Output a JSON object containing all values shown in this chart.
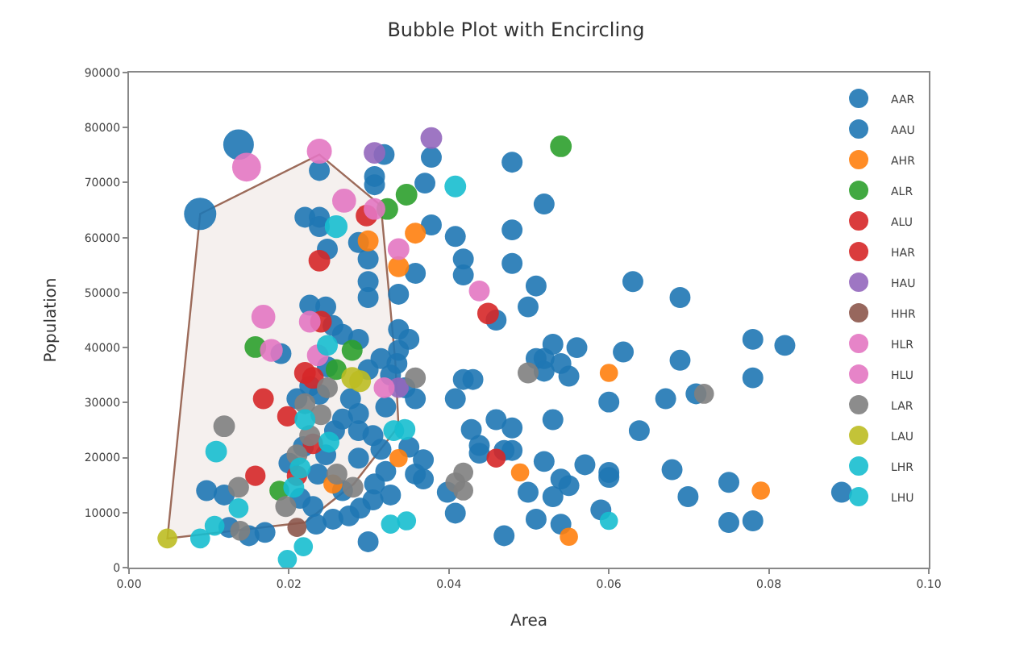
{
  "chart_data": {
    "type": "bubble",
    "title": "Bubble Plot with Encircling",
    "xlabel": "Area",
    "ylabel": "Population",
    "xlim": [
      0,
      0.1
    ],
    "ylim": [
      0,
      90000
    ],
    "xticks": [
      {
        "value": 0,
        "label": "0.00"
      },
      {
        "value": 0.02,
        "label": "0.02"
      },
      {
        "value": 0.04,
        "label": "0.04"
      },
      {
        "value": 0.06,
        "label": "0.06"
      },
      {
        "value": 0.08,
        "label": "0.08"
      },
      {
        "value": 0.1,
        "label": "0.10"
      }
    ],
    "yticks": [
      0,
      10000,
      20000,
      30000,
      40000,
      50000,
      60000,
      70000,
      80000,
      90000
    ],
    "grid": false,
    "legend": "top right",
    "marker": "circle",
    "series": [
      {
        "type": "area",
        "marker": "none",
        "color": "#9c6b5a",
        "x": [
          0.0048,
          0.0089,
          0.0238,
          0.0315,
          0.0333,
          0.0337,
          0.0281,
          0.022
        ],
        "values": [
          5300,
          64300,
          75100,
          65800,
          37400,
          25700,
          15200,
          8200
        ]
      },
      {
        "name": "AAR",
        "color": "#1f77b4",
        "x": [
          0.0479,
          0.0519,
          0.0479,
          0.0479,
          0.0509,
          0.063,
          0.0689,
          0.0499,
          0.0459,
          0.078,
          0.082,
          0.053,
          0.056,
          0.0618,
          0.0509,
          0.0519,
          0.054,
          0.0689,
          0.0519,
          0.055,
          0.078,
          0.06,
          0.0671,
          0.0709,
          0.0459,
          0.0479,
          0.053,
          0.0638,
          0.0469,
          0.0479,
          0.0519,
          0.057,
          0.06,
          0.06,
          0.0679,
          0.054,
          0.055,
          0.0499,
          0.053,
          0.0699,
          0.075,
          0.0891,
          0.059,
          0.0509,
          0.054,
          0.075,
          0.078,
          0.0469,
          0.0378,
          0.0319,
          0.0307,
          0.0307,
          0.037,
          0.0378,
          0.0408,
          0.0418,
          0.0418,
          0.0358,
          0.0337,
          0.0337,
          0.035,
          0.0418,
          0.043,
          0.0408,
          0.0358,
          0.0428,
          0.0438,
          0.0438,
          0.0368,
          0.0368,
          0.0408,
          0.0398,
          0.0299,
          0.0289,
          0.0358,
          0.0337,
          0.0335,
          0.0345,
          0.035,
          0.0238,
          0.022,
          0.0238,
          0.0238,
          0.0248,
          0.0287,
          0.0299,
          0.0299,
          0.0299,
          0.0226,
          0.0246,
          0.019,
          0.0267,
          0.0287,
          0.0277,
          0.0097,
          0.0119,
          0.0125,
          0.017,
          0.015,
          0.021,
          0.0257,
          0.02,
          0.0236,
          0.0267,
          0.0214,
          0.023,
          0.0287,
          0.0305,
          0.0321,
          0.0287,
          0.0321,
          0.0327,
          0.0305,
          0.0255,
          0.0234,
          0.0275,
          0.0307,
          0.0255,
          0.0226,
          0.0238,
          0.0287,
          0.0299,
          0.0315,
          0.0327,
          0.0248,
          0.0267,
          0.0218,
          0.0246,
          0.0315
        ],
        "values": [
          73700,
          66100,
          61400,
          55300,
          51200,
          52000,
          49100,
          47400,
          45000,
          41500,
          40400,
          40600,
          40000,
          39200,
          38000,
          38000,
          37100,
          37700,
          35700,
          34800,
          34500,
          30100,
          30700,
          31600,
          26900,
          25400,
          26900,
          24900,
          21300,
          21300,
          19300,
          18700,
          17300,
          16400,
          17800,
          16100,
          14900,
          13700,
          12900,
          12900,
          15500,
          13700,
          10500,
          8800,
          7900,
          8200,
          8500,
          5800,
          74600,
          75100,
          71100,
          69600,
          69900,
          62300,
          60200,
          56100,
          53200,
          53500,
          49700,
          43300,
          41500,
          34200,
          34200,
          30700,
          30700,
          25100,
          22200,
          20800,
          19600,
          16100,
          9900,
          13700,
          4700,
          10800,
          17000,
          39500,
          37100,
          32700,
          21900,
          72200,
          63700,
          63700,
          62000,
          57900,
          59100,
          56100,
          52000,
          49100,
          47700,
          47400,
          38900,
          42400,
          41500,
          30700,
          14000,
          13200,
          7300,
          6400,
          5800,
          30700,
          24900,
          19000,
          17000,
          14000,
          12600,
          11100,
          24900,
          24000,
          29200,
          19900,
          17500,
          13200,
          12300,
          8800,
          7900,
          9400,
          15200,
          44000,
          33000,
          31500,
          28000,
          36000,
          38000,
          35000,
          36500,
          27000,
          22000,
          20500,
          21500
        ],
        "sizes": [
          0.42,
          0.42,
          0.42,
          0.42,
          0.42,
          0.42,
          0.42,
          0.42,
          0.42,
          0.42,
          0.42,
          0.42,
          0.42,
          0.42,
          0.42,
          0.42,
          0.42,
          0.42,
          0.42,
          0.42,
          0.42,
          0.42,
          0.42,
          0.42,
          0.42,
          0.42,
          0.42,
          0.42,
          0.42,
          0.42,
          0.42,
          0.42,
          0.42,
          0.42,
          0.42,
          0.42,
          0.42,
          0.42,
          0.42,
          0.42,
          0.42,
          0.42,
          0.42,
          0.42,
          0.42,
          0.42,
          0.42,
          0.42,
          0.42,
          0.42,
          0.42,
          0.42,
          0.42,
          0.42,
          0.42,
          0.42,
          0.42,
          0.42,
          0.42,
          0.42,
          0.42,
          0.42,
          0.42,
          0.42,
          0.42,
          0.42,
          0.42,
          0.42,
          0.42,
          0.42,
          0.42,
          0.42,
          0.42,
          0.42,
          0.42,
          0.42,
          0.42,
          0.42,
          0.42,
          0.42,
          0.42,
          0.42,
          0.42,
          0.42,
          0.42,
          0.42,
          0.42,
          0.42,
          0.42,
          0.42,
          0.42,
          0.42,
          0.42,
          0.42,
          0.42,
          0.42,
          0.42,
          0.42,
          0.42,
          0.42,
          0.42,
          0.42,
          0.42,
          0.42,
          0.42,
          0.42,
          0.42,
          0.42,
          0.42,
          0.42,
          0.42,
          0.42,
          0.42,
          0.42,
          0.42,
          0.42,
          0.42,
          0.42,
          0.42,
          0.42,
          0.42,
          0.42,
          0.42,
          0.42,
          0.42,
          0.42,
          0.42,
          0.42,
          0.42
        ]
      },
      {
        "name": "AAU",
        "color": "#1f77b4",
        "x": [
          0.0089,
          0.0137
        ],
        "values": [
          64300,
          76900
        ],
        "sizes": [
          1,
          0.9
        ]
      },
      {
        "name": "AHR",
        "color": "#ff7f0e",
        "x": [
          0.06,
          0.0489,
          0.079,
          0.055,
          0.0358,
          0.0337,
          0.0299,
          0.0337,
          0.0255
        ],
        "values": [
          35400,
          17300,
          14000,
          5600,
          60800,
          19900,
          59400,
          54700,
          15200
        ],
        "sizes": [
          0.32,
          0.32,
          0.32,
          0.32,
          0.42,
          0.32,
          0.42,
          0.42,
          0.35
        ]
      },
      {
        "name": "ALR",
        "color": "#2ca02c",
        "x": [
          0.054,
          0.0347,
          0.0323,
          0.0158,
          0.0279,
          0.0259,
          0.0188
        ],
        "values": [
          76600,
          67800,
          65200,
          40100,
          39500,
          36000,
          14000
        ],
        "sizes": [
          0.45,
          0.45,
          0.45,
          0.45,
          0.42,
          0.42,
          0.38
        ]
      },
      {
        "name": "ALU",
        "color": "#d62728",
        "x": [
          0.0449,
          0.0459,
          0.0297,
          0.0238,
          0.024,
          0.022,
          0.023,
          0.0168
        ],
        "values": [
          46200,
          19900,
          64000,
          55800,
          44700,
          35400,
          34500,
          30700
        ],
        "sizes": [
          0.45,
          0.35,
          0.45,
          0.45,
          0.45,
          0.45,
          0.45,
          0.42
        ]
      },
      {
        "name": "HAR",
        "color": "#d62728",
        "x": [
          0.0198,
          0.0158,
          0.023,
          0.021
        ],
        "values": [
          27500,
          16700,
          22500,
          16700
        ],
        "sizes": [
          0.4,
          0.4,
          0.4,
          0.4
        ]
      },
      {
        "name": "HAU",
        "color": "#9467bd",
        "x": [
          0.0378,
          0.0307,
          0.0337
        ],
        "values": [
          78100,
          75400,
          32700
        ],
        "sizes": [
          0.45,
          0.45,
          0.4
        ]
      },
      {
        "name": "HHR",
        "color": "#8c564b",
        "x": [
          0.021
        ],
        "values": [
          7300
        ],
        "sizes": [
          0.35
        ]
      },
      {
        "name": "HLR",
        "color": "#e377c2",
        "x": [
          0.0438,
          0.0269,
          0.0307,
          0.0337,
          0.0226,
          0.0168,
          0.0178,
          0.0236,
          0.0319
        ],
        "values": [
          50300,
          66700,
          65200,
          57900,
          44700,
          45600,
          39500,
          38600,
          32700
        ],
        "sizes": [
          0.42,
          0.55,
          0.45,
          0.45,
          0.45,
          0.55,
          0.5,
          0.45,
          0.42
        ]
      },
      {
        "name": "HLU",
        "color": "#e377c2",
        "x": [
          0.0147,
          0.0238
        ],
        "values": [
          72800,
          75700
        ],
        "sizes": [
          0.8,
          0.6
        ]
      },
      {
        "name": "LAR",
        "color": "#7f7f7f",
        "x": [
          0.0499,
          0.0719,
          0.0358,
          0.0418,
          0.0408,
          0.0418,
          0.0248,
          0.0119,
          0.0137,
          0.0139,
          0.022,
          0.024,
          0.0226,
          0.021,
          0.026,
          0.0196,
          0.028
        ],
        "values": [
          35400,
          31600,
          34500,
          17300,
          15500,
          14000,
          32700,
          25700,
          14600,
          6700,
          29800,
          27800,
          24000,
          20500,
          17000,
          11100,
          14600
        ],
        "sizes": [
          0.42,
          0.38,
          0.42,
          0.38,
          0.38,
          0.38,
          0.42,
          0.45,
          0.42,
          0.38,
          0.42,
          0.42,
          0.42,
          0.42,
          0.42,
          0.42,
          0.42
        ]
      },
      {
        "name": "LAU",
        "color": "#bcbd22",
        "x": [
          0.0279,
          0.0289,
          0.0048
        ],
        "values": [
          34500,
          33900,
          5300
        ],
        "sizes": [
          0.45,
          0.45,
          0.38
        ]
      },
      {
        "name": "LHR",
        "color": "#17becf",
        "x": [
          0.06,
          0.0408,
          0.0347,
          0.0327,
          0.0248,
          0.0109,
          0.0137,
          0.0089,
          0.0107,
          0.0198,
          0.0218,
          0.022,
          0.025,
          0.0214,
          0.0206,
          0.0331,
          0.0345
        ],
        "values": [
          8500,
          69300,
          8500,
          7900,
          40400,
          21100,
          10800,
          5300,
          7600,
          1500,
          3800,
          26900,
          22800,
          18100,
          14600,
          24900,
          25100
        ],
        "sizes": [
          0.32,
          0.45,
          0.35,
          0.35,
          0.42,
          0.45,
          0.38,
          0.38,
          0.38,
          0.35,
          0.35,
          0.42,
          0.42,
          0.42,
          0.42,
          0.42,
          0.42
        ]
      },
      {
        "name": "LHU",
        "color": "#17becf",
        "x": [
          0.0259
        ],
        "values": [
          62000
        ],
        "sizes": [
          0.5
        ]
      }
    ]
  }
}
